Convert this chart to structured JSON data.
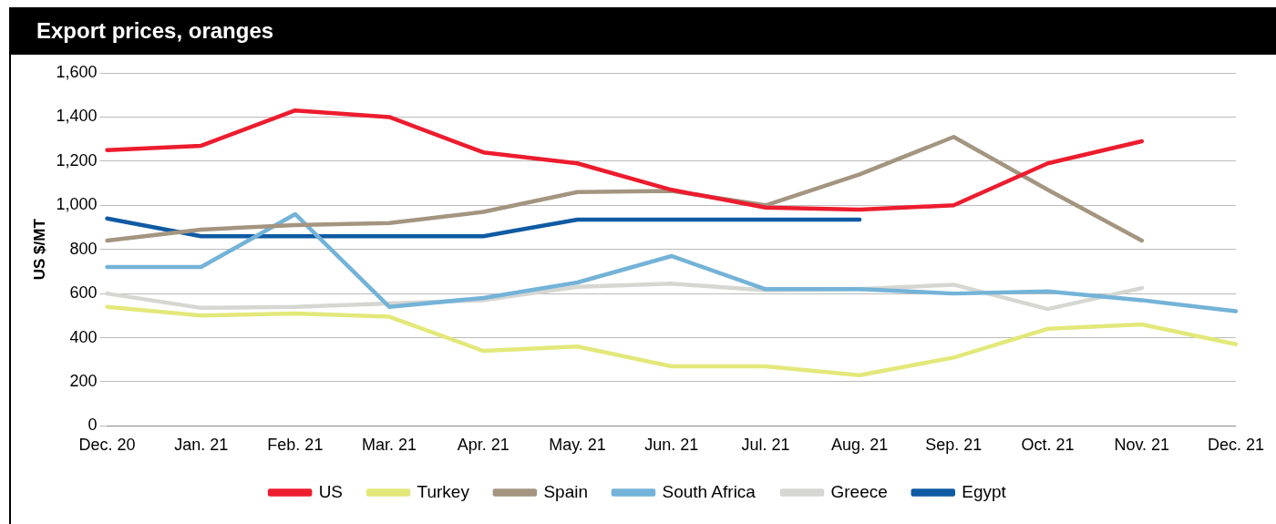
{
  "chart_data": {
    "type": "line",
    "title": "Export prices, oranges",
    "ylabel": "US $/MT",
    "categories": [
      "Dec. 20",
      "Jan. 21",
      "Feb. 21",
      "Mar. 21",
      "Apr. 21",
      "May. 21",
      "Jun. 21",
      "Jul. 21",
      "Aug. 21",
      "Sep. 21",
      "Oct. 21",
      "Nov. 21",
      "Dec. 21"
    ],
    "series": [
      {
        "name": "US",
        "color": "#ed1c2e",
        "values": [
          1250,
          1270,
          1430,
          1400,
          1240,
          1190,
          1070,
          990,
          980,
          1000,
          1190,
          1290,
          null
        ]
      },
      {
        "name": "Turkey",
        "color": "#e3e87a",
        "values": [
          540,
          500,
          510,
          495,
          340,
          360,
          270,
          270,
          230,
          310,
          440,
          460,
          370
        ]
      },
      {
        "name": "Spain",
        "color": "#a39580",
        "values": [
          840,
          890,
          910,
          920,
          970,
          1060,
          1065,
          1000,
          1140,
          1310,
          1070,
          840,
          null
        ]
      },
      {
        "name": "South Africa",
        "color": "#74b3d8",
        "values": [
          720,
          720,
          960,
          540,
          580,
          650,
          770,
          620,
          620,
          600,
          610,
          570,
          520
        ]
      },
      {
        "name": "Greece",
        "color": "#d6d6d2",
        "values": [
          600,
          535,
          540,
          555,
          570,
          630,
          645,
          615,
          620,
          640,
          530,
          625,
          null
        ]
      },
      {
        "name": "Egypt",
        "color": "#0f5aa3",
        "values": [
          940,
          860,
          860,
          860,
          860,
          935,
          935,
          935,
          935,
          null,
          null,
          null,
          null
        ]
      }
    ],
    "ylim": [
      0,
      1600
    ],
    "yticks": [
      0,
      200,
      400,
      600,
      800,
      {
        "value": 1000,
        "label": "1,000"
      },
      {
        "value": 1200,
        "label": "1,200"
      },
      {
        "value": 1400,
        "label": "1,400"
      },
      {
        "value": 1600,
        "label": "1,600"
      }
    ],
    "grid": "y",
    "legend": "bottom",
    "marker": "none",
    "line_style": "solid"
  }
}
